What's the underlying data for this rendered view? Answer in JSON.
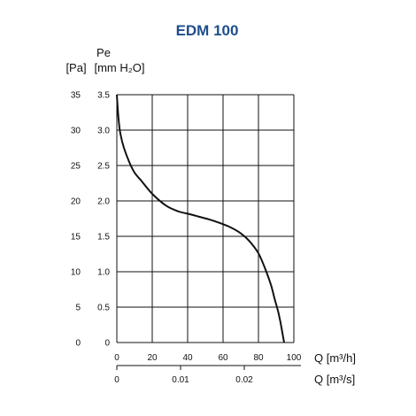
{
  "chart_data": {
    "type": "line",
    "title": "EDM 100",
    "ylabel_main": "Pe",
    "ylabel_pa": "[Pa]",
    "ylabel_mmh2o": "[mm H₂O]",
    "xlabel_m3h": "Q [m³/h]",
    "xlabel_m3s": "Q [m³/s]",
    "y_pa_ticks": [
      "35",
      "30",
      "25",
      "20",
      "15",
      "10",
      "5",
      "0"
    ],
    "y_mm_ticks": [
      "3.5",
      "3.0",
      "2.5",
      "2.0",
      "1.5",
      "1.0",
      "0.5",
      "0"
    ],
    "x_m3h_ticks": [
      "0",
      "20",
      "40",
      "60",
      "80",
      "100"
    ],
    "x_m3s_ticks": [
      "0",
      "0.01",
      "0.02"
    ],
    "x_m3h_tick_values": [
      0,
      20,
      40,
      60,
      80,
      100
    ],
    "x_m3s_tick_values": [
      0,
      0.01,
      0.02
    ],
    "xlim": [
      0,
      100
    ],
    "ylim": [
      0,
      35
    ],
    "grid": true,
    "series": [
      {
        "x": [
          0,
          1,
          2,
          4,
          7,
          10,
          14,
          20,
          28,
          35,
          40,
          46,
          52,
          58,
          64,
          69,
          73,
          76,
          80,
          84,
          87,
          89,
          91,
          92,
          93,
          94.5
        ],
        "y": [
          35,
          31.5,
          29.5,
          27.5,
          25.5,
          24,
          22.8,
          21,
          19.3,
          18.5,
          18.2,
          17.8,
          17.4,
          16.9,
          16.3,
          15.6,
          14.8,
          14,
          12.6,
          10.3,
          8.2,
          6.3,
          4.5,
          3.4,
          2.1,
          0
        ]
      }
    ]
  },
  "style": {
    "title_color": "#1f4e8c",
    "line_color": "#111111",
    "grid_color": "#111111"
  }
}
